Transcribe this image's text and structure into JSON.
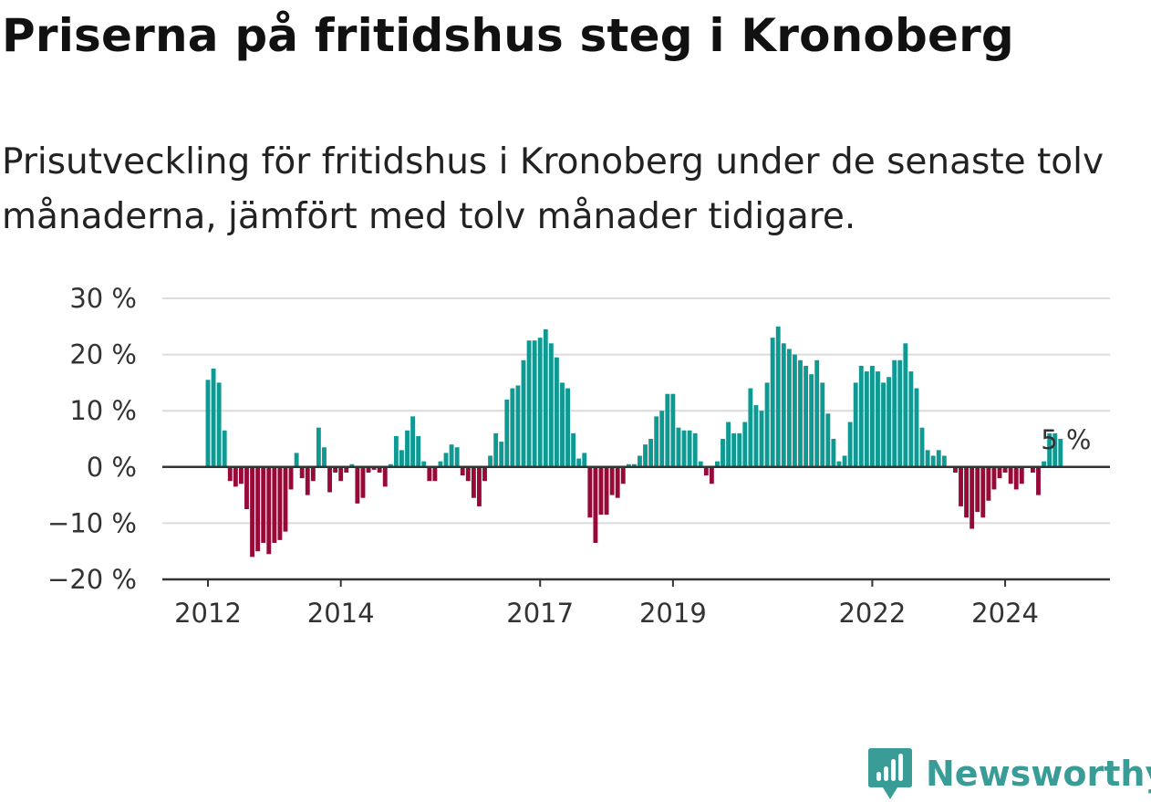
{
  "title": "Priserna på fritidshus steg i Kronoberg",
  "subtitle": "Prisutveckling för fritidshus i Kronoberg under de senaste tolv månaderna, jämfört med tolv månader tidigare.",
  "brand": {
    "name": "Newsworthy",
    "color": "#3a9c96",
    "icon": "newsworthy-logo-icon"
  },
  "colors": {
    "positive": "#0e9a93",
    "negative": "#970a38",
    "grid": "#dcdcdc",
    "axis": "#333333"
  },
  "chart_data": {
    "type": "bar",
    "ylim": [
      -20,
      30
    ],
    "y_ticks": [
      {
        "value": 30,
        "label": "30 %"
      },
      {
        "value": 20,
        "label": "20 %"
      },
      {
        "value": 10,
        "label": "10 %"
      },
      {
        "value": 0,
        "label": "0 %"
      },
      {
        "value": -10,
        "label": "−10 %"
      },
      {
        "value": -20,
        "label": "−20 %"
      }
    ],
    "x_ticks": [
      {
        "year": 2012,
        "label": "2012"
      },
      {
        "year": 2014,
        "label": "2014"
      },
      {
        "year": 2017,
        "label": "2017"
      },
      {
        "year": 2019,
        "label": "2019"
      },
      {
        "year": 2022,
        "label": "2022"
      },
      {
        "year": 2024,
        "label": "2024"
      }
    ],
    "start": "2012-01",
    "grid": true,
    "annotation": {
      "label": "5 %",
      "month": "2024-12"
    },
    "values": [
      15.5,
      17.5,
      15.0,
      6.5,
      -2.5,
      -3.5,
      -3.0,
      -7.5,
      -16.0,
      -15.0,
      -13.5,
      -15.5,
      -13.5,
      -13.0,
      -11.5,
      -4.0,
      2.5,
      -2.0,
      -5.0,
      -2.5,
      7.0,
      3.5,
      -4.5,
      -1.0,
      -2.5,
      -1.0,
      0.5,
      -6.5,
      -5.5,
      -1.0,
      -0.5,
      -1.0,
      -3.5,
      0.5,
      5.5,
      3.0,
      6.5,
      9.0,
      5.5,
      1.0,
      -2.5,
      -2.5,
      1.0,
      2.5,
      4.0,
      3.5,
      -1.5,
      -2.5,
      -5.5,
      -7.0,
      -2.5,
      2.0,
      6.0,
      4.5,
      12.0,
      14.0,
      14.5,
      19.0,
      22.5,
      22.5,
      23.0,
      24.5,
      22.0,
      19.5,
      15.0,
      14.0,
      6.0,
      1.5,
      2.5,
      -9.0,
      -13.5,
      -8.5,
      -8.5,
      -5.0,
      -5.5,
      -3.0,
      0.5,
      0.5,
      2.0,
      4.0,
      5.0,
      9.0,
      10.0,
      13.0,
      13.0,
      7.0,
      6.5,
      6.5,
      6.0,
      1.0,
      -1.5,
      -3.0,
      1.0,
      5.0,
      8.0,
      6.0,
      6.0,
      8.0,
      14.0,
      11.0,
      10.0,
      15.0,
      23.0,
      25.0,
      22.0,
      21.0,
      20.0,
      19.0,
      18.0,
      16.5,
      19.0,
      15.0,
      9.5,
      5.0,
      1.0,
      2.0,
      8.0,
      15.0,
      18.0,
      17.0,
      18.0,
      17.0,
      15.0,
      16.0,
      19.0,
      19.0,
      22.0,
      17.0,
      14.0,
      7.0,
      3.0,
      2.0,
      3.0,
      2.0,
      0.0,
      -1.0,
      -7.0,
      -9.0,
      -11.0,
      -8.0,
      -9.0,
      -6.0,
      -4.0,
      -2.0,
      -1.0,
      -3.0,
      -4.0,
      -3.0,
      0.0,
      -1.0,
      -5.0,
      1.0,
      6.0,
      6.0,
      5.0
    ]
  }
}
